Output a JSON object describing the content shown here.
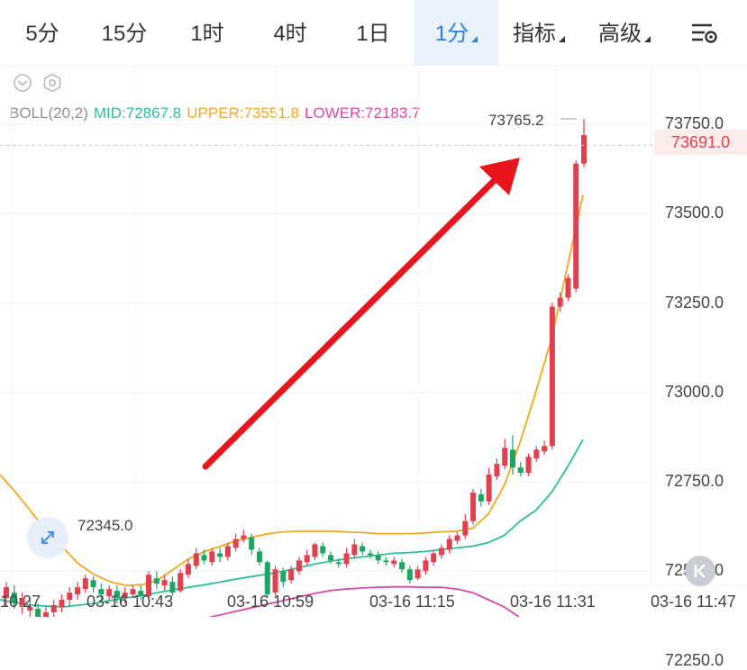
{
  "tabs": [
    {
      "label": "5分",
      "dropdown": false,
      "active": false
    },
    {
      "label": "15分",
      "dropdown": false,
      "active": false
    },
    {
      "label": "1时",
      "dropdown": false,
      "active": false
    },
    {
      "label": "4时",
      "dropdown": false,
      "active": false
    },
    {
      "label": "1日",
      "dropdown": false,
      "active": false
    },
    {
      "label": "1分",
      "dropdown": true,
      "active": true
    },
    {
      "label": "指标",
      "dropdown": true,
      "active": false
    },
    {
      "label": "高级",
      "dropdown": true,
      "active": false
    }
  ],
  "icons": {
    "settings": "chart-settings-icon",
    "collapse": "chevron-down-circle-icon",
    "indicator": "hexagon-settings-icon",
    "zoom": "expand-arrows-icon",
    "back": "k-back-icon"
  },
  "indicator": {
    "name": "BOLL(20,2)",
    "mid": "MID:72867.8",
    "upper": "UPPER:73551.8",
    "lower": "LOWER:72183.7"
  },
  "labels": {
    "high": "73765.2",
    "low": "72345.0",
    "current_price": "73691.0",
    "k_button": "K"
  },
  "colors": {
    "up": "#e0414f",
    "down": "#1fa463",
    "mid": "#2ebd9b",
    "upper": "#f0a81e",
    "lower": "#d94aa8",
    "arrow": "#e8161c",
    "active_tab": "#2d7ff0"
  },
  "chart_data": {
    "type": "candlestick",
    "yticks": [
      "73750.0",
      "73500.0",
      "73250.0",
      "73000.0",
      "72750.0",
      "72500.0",
      "72250.0"
    ],
    "ytick_values": [
      73750,
      73500,
      73250,
      73000,
      72750,
      72500,
      72250
    ],
    "xticks": [
      "10:27",
      "03-16 10:43",
      "03-16 10:59",
      "03-16 11:15",
      "03-16 11:31",
      "03-16 11:47"
    ],
    "current_price": 73691.0,
    "high_marker": 73765.2,
    "low_marker": 72345.0,
    "candles": [
      [
        72425,
        72455,
        72400,
        72470
      ],
      [
        72440,
        72410,
        72395,
        72460
      ],
      [
        72405,
        72425,
        72380,
        72440
      ],
      [
        72390,
        72400,
        72360,
        72420
      ],
      [
        72395,
        72360,
        72330,
        72410
      ],
      [
        72355,
        72385,
        72340,
        72400
      ],
      [
        72385,
        72405,
        72370,
        72420
      ],
      [
        72400,
        72420,
        72385,
        72435
      ],
      [
        72420,
        72440,
        72400,
        72455
      ],
      [
        72435,
        72455,
        72420,
        72470
      ],
      [
        72450,
        72480,
        72440,
        72490
      ],
      [
        72475,
        72455,
        72440,
        72485
      ],
      [
        72450,
        72435,
        72420,
        72465
      ],
      [
        72430,
        72450,
        72420,
        72460
      ],
      [
        72445,
        72425,
        72410,
        72460
      ],
      [
        72425,
        72440,
        72410,
        72455
      ],
      [
        72435,
        72450,
        72425,
        72460
      ],
      [
        72445,
        72430,
        72420,
        72460
      ],
      [
        72430,
        72490,
        72425,
        72500
      ],
      [
        72480,
        72465,
        72450,
        72500
      ],
      [
        72460,
        72475,
        72445,
        72490
      ],
      [
        72470,
        72440,
        72430,
        72485
      ],
      [
        72445,
        72495,
        72440,
        72505
      ],
      [
        72490,
        72520,
        72480,
        72535
      ],
      [
        72515,
        72550,
        72505,
        72565
      ],
      [
        72545,
        72530,
        72520,
        72560
      ],
      [
        72525,
        72555,
        72515,
        72565
      ],
      [
        72550,
        72540,
        72525,
        72565
      ],
      [
        72540,
        72570,
        72530,
        72580
      ],
      [
        72565,
        72590,
        72555,
        72605
      ],
      [
        72590,
        72600,
        72580,
        72615
      ],
      [
        72595,
        72560,
        72545,
        72605
      ],
      [
        72555,
        72525,
        72515,
        72565
      ],
      [
        72525,
        72435,
        72425,
        72530
      ],
      [
        72440,
        72505,
        72430,
        72515
      ],
      [
        72500,
        72470,
        72455,
        72510
      ],
      [
        72475,
        72505,
        72465,
        72515
      ],
      [
        72500,
        72530,
        72490,
        72540
      ],
      [
        72525,
        72545,
        72515,
        72560
      ],
      [
        72540,
        72575,
        72530,
        72580
      ],
      [
        72570,
        72550,
        72540,
        72580
      ],
      [
        72545,
        72530,
        72520,
        72555
      ],
      [
        72525,
        72520,
        72510,
        72535
      ],
      [
        72520,
        72550,
        72510,
        72565
      ],
      [
        72545,
        72575,
        72535,
        72590
      ],
      [
        72570,
        72555,
        72545,
        72580
      ],
      [
        72550,
        72545,
        72535,
        72560
      ],
      [
        72545,
        72530,
        72520,
        72555
      ],
      [
        72530,
        72525,
        72515,
        72540
      ],
      [
        72520,
        72530,
        72510,
        72540
      ],
      [
        72525,
        72505,
        72495,
        72535
      ],
      [
        72505,
        72475,
        72465,
        72515
      ],
      [
        72480,
        72505,
        72475,
        72515
      ],
      [
        72500,
        72530,
        72490,
        72540
      ],
      [
        72525,
        72550,
        72515,
        72560
      ],
      [
        72545,
        72565,
        72535,
        72575
      ],
      [
        72560,
        72590,
        72550,
        72600
      ],
      [
        72585,
        72600,
        72575,
        72610
      ],
      [
        72600,
        72640,
        72590,
        72660
      ],
      [
        72640,
        72720,
        72630,
        72730
      ],
      [
        72715,
        72695,
        72680,
        72730
      ],
      [
        72695,
        72770,
        72685,
        72790
      ],
      [
        72765,
        72800,
        72755,
        72815
      ],
      [
        72795,
        72845,
        72785,
        72870
      ],
      [
        72840,
        72790,
        72770,
        72880
      ],
      [
        72790,
        72775,
        72765,
        72805
      ],
      [
        72775,
        72820,
        72765,
        72830
      ],
      [
        72815,
        72840,
        72805,
        72850
      ],
      [
        72835,
        72850,
        72825,
        72865
      ],
      [
        72850,
        73240,
        72840,
        73250
      ],
      [
        73240,
        73265,
        73225,
        73280
      ],
      [
        73265,
        73320,
        73255,
        73330
      ],
      [
        73290,
        73640,
        73280,
        73650
      ],
      [
        73640,
        73720,
        73630,
        73765
      ]
    ],
    "mid": [
      72420,
      72412,
      72405,
      72402,
      72400,
      72405,
      72410,
      72418,
      72425,
      72432,
      72440,
      72448,
      72455,
      72462,
      72470,
      72478,
      72485,
      72492,
      72500,
      72510,
      72520,
      72528,
      72535,
      72540,
      72545,
      72550,
      72552,
      72555,
      72560,
      72565,
      72570,
      72580,
      72600,
      72640,
      72670,
      72720,
      72790,
      72867.8
    ],
    "upper": [
      72770,
      72720,
      72665,
      72610,
      72565,
      72520,
      72490,
      72470,
      72460,
      72462,
      72475,
      72505,
      72535,
      72555,
      72570,
      72585,
      72595,
      72605,
      72610,
      72612,
      72612,
      72612,
      72610,
      72608,
      72605,
      72605,
      72605,
      72607,
      72610,
      72612,
      72620,
      72660,
      72740,
      72860,
      73000,
      73150,
      73350,
      73551.8
    ],
    "lower": [
      72340,
      72335,
      72320,
      72300,
      72290,
      72300,
      72320,
      72335,
      72340,
      72342,
      72345,
      72348,
      72358,
      72368,
      72378,
      72388,
      72398,
      72408,
      72418,
      72428,
      72438,
      72446,
      72450,
      72453,
      72455,
      72456,
      72456,
      72455,
      72455,
      72450,
      72440,
      72420,
      72400,
      72370,
      72350,
      72280,
      72230,
      72183.7
    ]
  }
}
